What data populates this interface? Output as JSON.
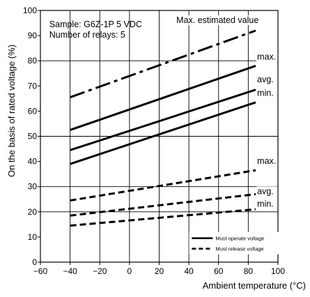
{
  "chart_data": {
    "type": "line",
    "title": "",
    "xlabel": "Ambient temperature (°C)",
    "ylabel": "On the basis of rated voltage (%)",
    "xlim": [
      -60,
      100
    ],
    "ylim": [
      0,
      100
    ],
    "x_ticks": [
      "−60",
      "−40",
      "−20",
      "0",
      "20",
      "40",
      "60",
      "80",
      "100"
    ],
    "y_ticks": [
      "0",
      "10",
      "20",
      "30",
      "40",
      "50",
      "60",
      "70",
      "80",
      "90",
      "100"
    ],
    "x_tick_values": [
      -60,
      -40,
      -20,
      0,
      20,
      40,
      60,
      80,
      100
    ],
    "y_tick_values": [
      0,
      10,
      20,
      30,
      40,
      50,
      60,
      70,
      80,
      90,
      100
    ],
    "x_grid": [
      -40,
      -20,
      0,
      20,
      40,
      60,
      80
    ],
    "y_grid": [
      20,
      30,
      50,
      80
    ],
    "notes": [
      "Sample: G6Z-1P  5 VDC",
      "Number of relays: 5"
    ],
    "series": [
      {
        "style": "dashdot",
        "x": [
          -40,
          85
        ],
        "y": [
          65.5,
          92
        ]
      },
      {
        "style": "solid",
        "x": [
          -40,
          85
        ],
        "y": [
          52.5,
          78
        ]
      },
      {
        "style": "solid",
        "x": [
          -40,
          85
        ],
        "y": [
          44.5,
          68.5
        ]
      },
      {
        "style": "solid",
        "x": [
          -40,
          85
        ],
        "y": [
          39,
          63.5
        ]
      },
      {
        "style": "dashed",
        "x": [
          -40,
          85
        ],
        "y": [
          24.5,
          36.5
        ]
      },
      {
        "style": "dashed",
        "x": [
          -40,
          85
        ],
        "y": [
          18.5,
          27
        ]
      },
      {
        "style": "dashed",
        "x": [
          -40,
          85
        ],
        "y": [
          14.5,
          21
        ]
      }
    ],
    "annotations": [
      {
        "text": "Max. estimated value",
        "x": 83,
        "y": 95
      },
      {
        "text": "max.",
        "x": 86,
        "y": 80.5
      },
      {
        "text": "avg.",
        "x": 86,
        "y": 71.5
      },
      {
        "text": "min.",
        "x": 86,
        "y": 66
      },
      {
        "text": "max.",
        "x": 86,
        "y": 39
      },
      {
        "text": "avg.",
        "x": 86,
        "y": 27
      },
      {
        "text": "min.",
        "x": 86,
        "y": 22
      }
    ],
    "legend": {
      "position": "bottom-right",
      "entries": [
        {
          "label": "Must operate voltage",
          "style": "solid"
        },
        {
          "label": "Must release voltage",
          "style": "dashed"
        }
      ]
    },
    "grid": true
  }
}
